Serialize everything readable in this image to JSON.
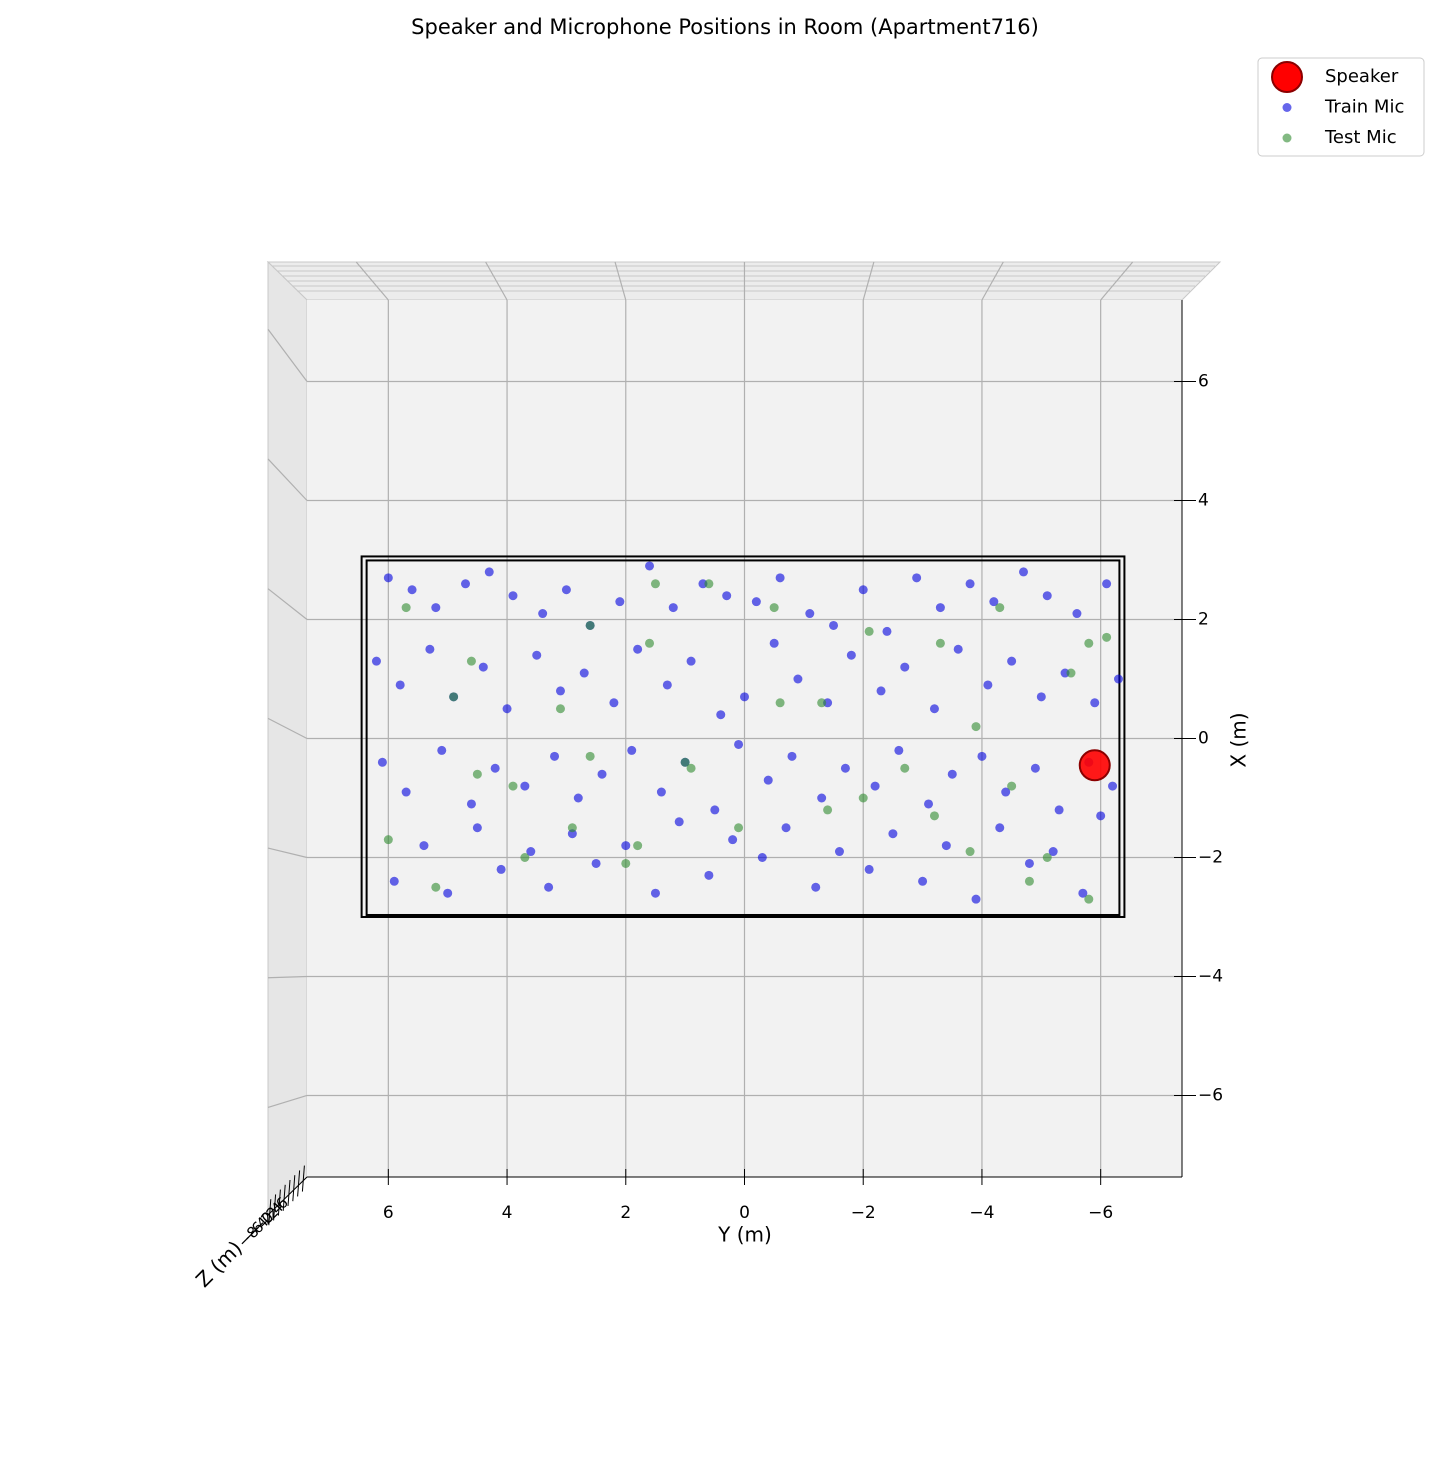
{
  "chart_data": {
    "type": "scatter",
    "title": "Speaker and Microphone Positions in Room (Apartment716)",
    "xlabel": "Y (m)",
    "ylabel": "X (m)",
    "zlabel": "Z (m)",
    "xlim": [
      7.37,
      -7.37
    ],
    "ylim": [
      -7.37,
      7.37
    ],
    "xticks": [
      6,
      4,
      2,
      0,
      {
        "value": -2,
        "label": "−2"
      },
      {
        "value": -4,
        "label": "−4"
      },
      {
        "value": -6,
        "label": "−6"
      }
    ],
    "yticks": [
      {
        "value": -6,
        "label": "−6"
      },
      {
        "value": -4,
        "label": "−4"
      },
      {
        "value": -2,
        "label": "−2"
      },
      0,
      2,
      4,
      6
    ],
    "zticks": [
      {
        "value": -8,
        "label": "−8"
      },
      {
        "value": -6,
        "label": "−6"
      },
      {
        "value": -4,
        "label": "−4"
      },
      {
        "value": -2,
        "label": "−2"
      },
      0,
      2,
      4,
      6
    ],
    "grid": true,
    "legend": "upper right",
    "room": {
      "x": [
        6.45,
        -6.4
      ],
      "y": [
        -3.0,
        3.06
      ]
    },
    "series": [
      {
        "name": "Speaker",
        "color": "#ff0000",
        "edge": "#8b0000",
        "x": [
          -5.9
        ],
        "y": [
          -0.45
        ]
      },
      {
        "name": "Train Mic",
        "color": "#0000dd",
        "x": [
          6.0,
          5.6,
          5.2,
          4.7,
          4.3,
          3.9,
          3.4,
          3.0,
          2.6,
          2.1,
          1.6,
          1.2,
          0.7,
          0.3,
          -0.2,
          -0.6,
          -1.1,
          -1.5,
          -2.0,
          -2.4,
          -2.9,
          -3.3,
          -3.8,
          -4.2,
          -4.7,
          -5.1,
          -5.6,
          -6.1,
          6.2,
          5.8,
          5.3,
          4.9,
          4.4,
          4.0,
          3.5,
          3.1,
          2.7,
          2.2,
          1.8,
          1.3,
          0.9,
          0.4,
          0.0,
          -0.5,
          -0.9,
          -1.4,
          -1.8,
          -2.3,
          -2.7,
          -3.2,
          -3.6,
          -4.1,
          -4.5,
          -5.0,
          -5.4,
          -5.9,
          -6.3,
          6.1,
          5.7,
          5.1,
          4.6,
          4.2,
          3.7,
          3.2,
          2.8,
          2.4,
          1.9,
          1.4,
          1.0,
          0.5,
          0.1,
          -0.4,
          -0.8,
          -1.3,
          -1.7,
          -2.2,
          -2.6,
          -3.1,
          -3.5,
          -4.0,
          -4.4,
          -4.9,
          -5.3,
          -5.8,
          -6.2,
          5.9,
          5.4,
          5.0,
          4.5,
          4.1,
          3.6,
          3.3,
          2.9,
          2.5,
          2.0,
          1.5,
          1.1,
          0.6,
          0.2,
          -0.3,
          -0.7,
          -1.2,
          -1.6,
          -2.1,
          -2.5,
          -3.0,
          -3.4,
          -3.9,
          -4.3,
          -4.8,
          -5.2,
          -5.7,
          -6.0
        ],
        "y": [
          2.7,
          2.5,
          2.2,
          2.6,
          2.8,
          2.4,
          2.1,
          2.5,
          1.9,
          2.3,
          2.9,
          2.2,
          2.6,
          2.4,
          2.3,
          2.7,
          2.1,
          1.9,
          2.5,
          1.8,
          2.7,
          2.2,
          2.6,
          2.3,
          2.8,
          2.4,
          2.1,
          2.6,
          1.3,
          0.9,
          1.5,
          0.7,
          1.2,
          0.5,
          1.4,
          0.8,
          1.1,
          0.6,
          1.5,
          0.9,
          1.3,
          0.4,
          0.7,
          1.6,
          1.0,
          0.6,
          1.4,
          0.8,
          1.2,
          0.5,
          1.5,
          0.9,
          1.3,
          0.7,
          1.1,
          0.6,
          1.0,
          -0.4,
          -0.9,
          -0.2,
          -1.1,
          -0.5,
          -0.8,
          -0.3,
          -1.0,
          -0.6,
          -0.2,
          -0.9,
          -0.4,
          -1.2,
          -0.1,
          -0.7,
          -0.3,
          -1.0,
          -0.5,
          -0.8,
          -0.2,
          -1.1,
          -0.6,
          -0.3,
          -0.9,
          -0.5,
          -1.2,
          -0.4,
          -0.8,
          -2.4,
          -1.8,
          -2.6,
          -1.5,
          -2.2,
          -1.9,
          -2.5,
          -1.6,
          -2.1,
          -1.8,
          -2.6,
          -1.4,
          -2.3,
          -1.7,
          -2.0,
          -1.5,
          -2.5,
          -1.9,
          -2.2,
          -1.6,
          -2.4,
          -1.8,
          -2.7,
          -1.5,
          -2.1,
          -1.9,
          -2.6,
          -1.3
        ]
      },
      {
        "name": "Test Mic",
        "color": "#2e8b2e",
        "x": [
          5.7,
          4.9,
          4.5,
          3.7,
          2.9,
          2.6,
          1.8,
          1.5,
          0.9,
          0.6,
          -0.5,
          -1.3,
          -2.0,
          -2.7,
          -3.3,
          -3.8,
          -4.3,
          -4.8,
          -5.5,
          -5.8,
          -6.1,
          6.0,
          5.2,
          4.6,
          3.9,
          3.1,
          2.6,
          2.0,
          1.6,
          1.0,
          0.1,
          -0.6,
          -1.4,
          -2.1,
          -3.2,
          -3.9,
          -4.5,
          -5.1,
          -5.8
        ],
        "y": [
          2.2,
          0.7,
          -0.6,
          -2.0,
          -1.5,
          1.9,
          -1.8,
          2.6,
          -0.5,
          2.6,
          2.2,
          0.6,
          -1.0,
          -0.5,
          1.6,
          -1.9,
          2.2,
          -2.4,
          1.1,
          -2.7,
          1.7,
          -1.7,
          -2.5,
          1.3,
          -0.8,
          0.5,
          -0.3,
          -2.1,
          1.6,
          -0.4,
          -1.5,
          0.6,
          -1.2,
          1.8,
          -1.3,
          0.2,
          -0.8,
          -2.0,
          1.6
        ]
      }
    ]
  }
}
